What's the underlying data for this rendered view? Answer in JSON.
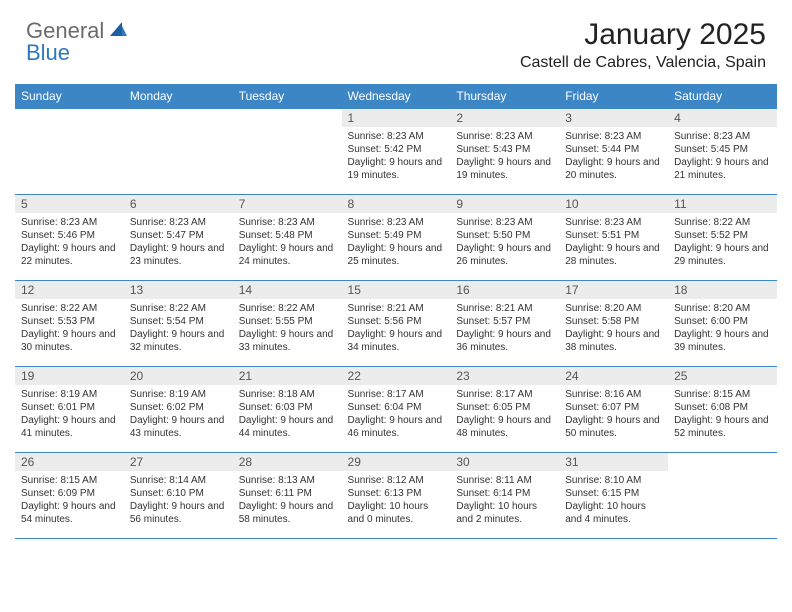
{
  "brand": {
    "text1": "General",
    "text2": "Blue"
  },
  "title": "January 2025",
  "location": "Castell de Cabres, Valencia, Spain",
  "colors": {
    "header_bg": "#3d86c6",
    "header_fg": "#ffffff",
    "daynum_bg": "#ececec",
    "border": "#3d86c6",
    "text": "#333333",
    "brand_gray": "#6b6b6b",
    "brand_blue": "#2d78c0"
  },
  "fonts": {
    "title_size": 30,
    "location_size": 16,
    "dayhead_size": 12,
    "cell_size": 10
  },
  "day_headers": [
    "Sunday",
    "Monday",
    "Tuesday",
    "Wednesday",
    "Thursday",
    "Friday",
    "Saturday"
  ],
  "weeks": [
    [
      null,
      null,
      null,
      {
        "n": "1",
        "sr": "8:23 AM",
        "ss": "5:42 PM",
        "dl": "9 hours and 19 minutes."
      },
      {
        "n": "2",
        "sr": "8:23 AM",
        "ss": "5:43 PM",
        "dl": "9 hours and 19 minutes."
      },
      {
        "n": "3",
        "sr": "8:23 AM",
        "ss": "5:44 PM",
        "dl": "9 hours and 20 minutes."
      },
      {
        "n": "4",
        "sr": "8:23 AM",
        "ss": "5:45 PM",
        "dl": "9 hours and 21 minutes."
      }
    ],
    [
      {
        "n": "5",
        "sr": "8:23 AM",
        "ss": "5:46 PM",
        "dl": "9 hours and 22 minutes."
      },
      {
        "n": "6",
        "sr": "8:23 AM",
        "ss": "5:47 PM",
        "dl": "9 hours and 23 minutes."
      },
      {
        "n": "7",
        "sr": "8:23 AM",
        "ss": "5:48 PM",
        "dl": "9 hours and 24 minutes."
      },
      {
        "n": "8",
        "sr": "8:23 AM",
        "ss": "5:49 PM",
        "dl": "9 hours and 25 minutes."
      },
      {
        "n": "9",
        "sr": "8:23 AM",
        "ss": "5:50 PM",
        "dl": "9 hours and 26 minutes."
      },
      {
        "n": "10",
        "sr": "8:23 AM",
        "ss": "5:51 PM",
        "dl": "9 hours and 28 minutes."
      },
      {
        "n": "11",
        "sr": "8:22 AM",
        "ss": "5:52 PM",
        "dl": "9 hours and 29 minutes."
      }
    ],
    [
      {
        "n": "12",
        "sr": "8:22 AM",
        "ss": "5:53 PM",
        "dl": "9 hours and 30 minutes."
      },
      {
        "n": "13",
        "sr": "8:22 AM",
        "ss": "5:54 PM",
        "dl": "9 hours and 32 minutes."
      },
      {
        "n": "14",
        "sr": "8:22 AM",
        "ss": "5:55 PM",
        "dl": "9 hours and 33 minutes."
      },
      {
        "n": "15",
        "sr": "8:21 AM",
        "ss": "5:56 PM",
        "dl": "9 hours and 34 minutes."
      },
      {
        "n": "16",
        "sr": "8:21 AM",
        "ss": "5:57 PM",
        "dl": "9 hours and 36 minutes."
      },
      {
        "n": "17",
        "sr": "8:20 AM",
        "ss": "5:58 PM",
        "dl": "9 hours and 38 minutes."
      },
      {
        "n": "18",
        "sr": "8:20 AM",
        "ss": "6:00 PM",
        "dl": "9 hours and 39 minutes."
      }
    ],
    [
      {
        "n": "19",
        "sr": "8:19 AM",
        "ss": "6:01 PM",
        "dl": "9 hours and 41 minutes."
      },
      {
        "n": "20",
        "sr": "8:19 AM",
        "ss": "6:02 PM",
        "dl": "9 hours and 43 minutes."
      },
      {
        "n": "21",
        "sr": "8:18 AM",
        "ss": "6:03 PM",
        "dl": "9 hours and 44 minutes."
      },
      {
        "n": "22",
        "sr": "8:17 AM",
        "ss": "6:04 PM",
        "dl": "9 hours and 46 minutes."
      },
      {
        "n": "23",
        "sr": "8:17 AM",
        "ss": "6:05 PM",
        "dl": "9 hours and 48 minutes."
      },
      {
        "n": "24",
        "sr": "8:16 AM",
        "ss": "6:07 PM",
        "dl": "9 hours and 50 minutes."
      },
      {
        "n": "25",
        "sr": "8:15 AM",
        "ss": "6:08 PM",
        "dl": "9 hours and 52 minutes."
      }
    ],
    [
      {
        "n": "26",
        "sr": "8:15 AM",
        "ss": "6:09 PM",
        "dl": "9 hours and 54 minutes."
      },
      {
        "n": "27",
        "sr": "8:14 AM",
        "ss": "6:10 PM",
        "dl": "9 hours and 56 minutes."
      },
      {
        "n": "28",
        "sr": "8:13 AM",
        "ss": "6:11 PM",
        "dl": "9 hours and 58 minutes."
      },
      {
        "n": "29",
        "sr": "8:12 AM",
        "ss": "6:13 PM",
        "dl": "10 hours and 0 minutes."
      },
      {
        "n": "30",
        "sr": "8:11 AM",
        "ss": "6:14 PM",
        "dl": "10 hours and 2 minutes."
      },
      {
        "n": "31",
        "sr": "8:10 AM",
        "ss": "6:15 PM",
        "dl": "10 hours and 4 minutes."
      },
      null
    ]
  ],
  "labels": {
    "sunrise": "Sunrise:",
    "sunset": "Sunset:",
    "daylight": "Daylight:"
  }
}
